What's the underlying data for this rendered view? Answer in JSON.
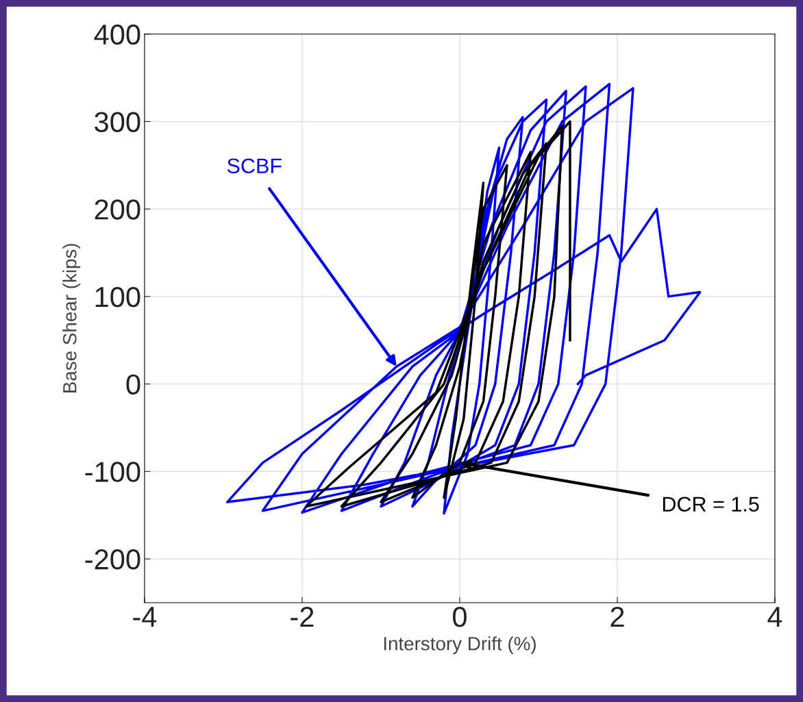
{
  "chart_data": {
    "type": "line",
    "xlabel": "Interstory Drift (%)",
    "ylabel": "Base Shear (kips)",
    "xlim": [
      -4,
      4
    ],
    "xticks": [
      -4,
      -2,
      0,
      2,
      4
    ],
    "ylim": [
      -250,
      400
    ],
    "yticks": [
      -200,
      -100,
      0,
      100,
      200,
      300,
      400
    ],
    "grid": true,
    "legend": false,
    "series": [
      {
        "name": "SCBF",
        "color": "#0000ff",
        "x": [
          0,
          0.2,
          0.35,
          0.5,
          0.4,
          0.25,
          0.1,
          -0.2,
          -0.1,
          0.1,
          0.35,
          0.6,
          0.8,
          0.65,
          0.45,
          0.2,
          -0.3,
          -0.6,
          -0.4,
          -0.1,
          0.15,
          0.45,
          0.8,
          1.1,
          0.95,
          0.75,
          0.45,
          -0.3,
          -1.0,
          -0.7,
          -0.3,
          0,
          0.4,
          0.9,
          1.35,
          1.2,
          1.0,
          0.7,
          -0.5,
          -1.5,
          -1.1,
          -0.5,
          0,
          0.5,
          1.1,
          1.6,
          1.45,
          1.25,
          0.9,
          -0.8,
          -2.0,
          -1.5,
          -0.6,
          0,
          0.6,
          1.3,
          1.9,
          1.75,
          1.55,
          1.2,
          -1.0,
          -2.5,
          -2.0,
          -0.8,
          0,
          0.8,
          1.6,
          2.2,
          2.05,
          1.85,
          1.45,
          -1.2,
          -2.95,
          -2.5,
          -1.5,
          -0.3,
          0.3,
          1.2,
          1.9,
          2.05,
          2.5,
          2.65,
          3.05,
          2.6,
          1.6,
          1.5
        ],
        "values": [
          0,
          120,
          220,
          270,
          150,
          0,
          -80,
          -148,
          -60,
          60,
          200,
          280,
          305,
          150,
          0,
          -70,
          -110,
          -140,
          -90,
          20,
          100,
          230,
          300,
          325,
          150,
          0,
          -70,
          -110,
          -140,
          -90,
          10,
          60,
          180,
          290,
          335,
          150,
          0,
          -70,
          -110,
          -145,
          -80,
          10,
          60,
          180,
          300,
          340,
          150,
          0,
          -70,
          -110,
          -147,
          -80,
          20,
          60,
          180,
          300,
          343,
          150,
          0,
          -70,
          -115,
          -145,
          -80,
          20,
          65,
          180,
          300,
          338,
          150,
          0,
          -70,
          -115,
          -135,
          -90,
          -30,
          45,
          80,
          130,
          170,
          140,
          200,
          100,
          105,
          50,
          10,
          0
        ]
      },
      {
        "name": "DCR = 1.5",
        "color": "#000000",
        "x": [
          0,
          0.15,
          0.3,
          0.2,
          0.05,
          -0.2,
          -0.05,
          0.1,
          0.3,
          0.6,
          0.45,
          0.3,
          0,
          -0.6,
          -0.3,
          0,
          0.3,
          0.9,
          0.75,
          0.55,
          0.2,
          -1.0,
          -0.6,
          -0.1,
          0.3,
          0.8,
          1.1,
          0.95,
          0.75,
          0.4,
          -1.5,
          -1.0,
          -0.2,
          0.3,
          0.9,
          1.3,
          1.2,
          1.0,
          0.6,
          -1.95,
          -1.4,
          -0.3,
          0.3,
          1.0,
          1.4,
          1.4
        ],
        "values": [
          0,
          120,
          230,
          100,
          -40,
          -130,
          -40,
          80,
          200,
          250,
          100,
          -20,
          -90,
          -130,
          -70,
          20,
          160,
          265,
          100,
          -20,
          -90,
          -135,
          -80,
          10,
          140,
          240,
          275,
          100,
          -20,
          -90,
          -140,
          -90,
          0,
          130,
          250,
          295,
          100,
          -20,
          -90,
          -140,
          -95,
          -10,
          130,
          260,
          300,
          50
        ]
      }
    ]
  }
}
